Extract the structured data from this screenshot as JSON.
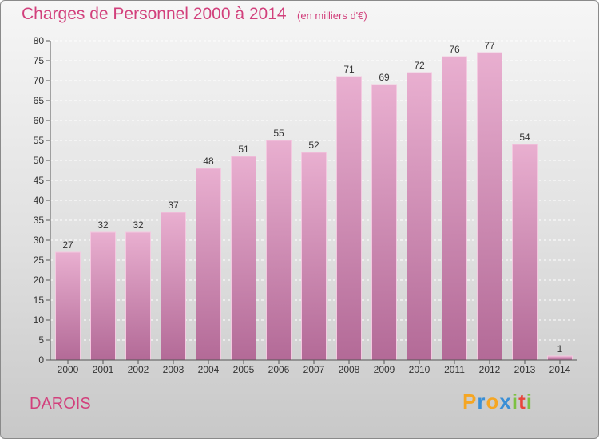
{
  "chart_data": {
    "type": "bar",
    "title": "Charges de Personnel 2000 à 2014",
    "subtitle": "(en milliers d'€)",
    "categories": [
      "2000",
      "2001",
      "2002",
      "2003",
      "2004",
      "2005",
      "2006",
      "2007",
      "2008",
      "2009",
      "2010",
      "2011",
      "2012",
      "2013",
      "2014"
    ],
    "values": [
      27,
      32,
      32,
      37,
      48,
      51,
      55,
      52,
      71,
      69,
      72,
      76,
      77,
      54,
      1
    ],
    "ylim": [
      0,
      80
    ],
    "yticks": [
      0,
      5,
      10,
      15,
      20,
      25,
      30,
      35,
      40,
      45,
      50,
      55,
      60,
      65,
      70,
      75,
      80
    ],
    "grid": true,
    "bar_color": "#d98ab5"
  },
  "commune": "DAROIS",
  "logo": {
    "letters": [
      "P",
      "r",
      "o",
      "x",
      "i",
      "t",
      "i"
    ],
    "colors": [
      "#f5a623",
      "#3a8fd6",
      "#f5a623",
      "#3a8fd6",
      "#7cc142",
      "#e8453c",
      "#7cc142"
    ]
  }
}
